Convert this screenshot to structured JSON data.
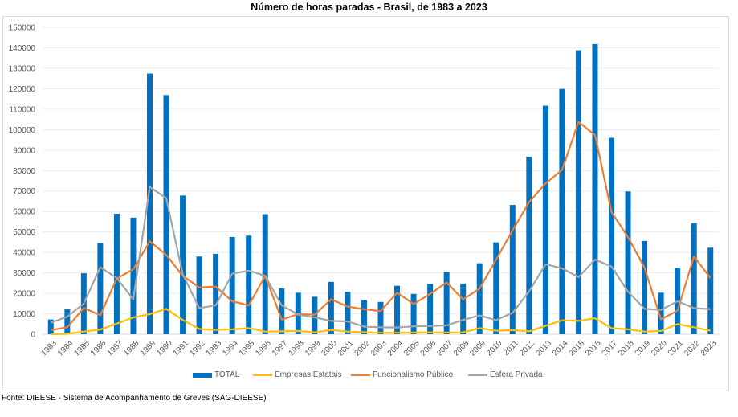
{
  "chart_data": {
    "type": "bar+line",
    "title": "Número de horas paradas - Brasil, de 1983 a 2023",
    "xlabel": "",
    "ylabel": "",
    "ylim": [
      0,
      150000
    ],
    "yticks": [
      "0",
      "10000",
      "20000",
      "30000",
      "40000",
      "50000",
      "60000",
      "70000",
      "80000",
      "90000",
      "100000",
      "110000",
      "120000",
      "130000",
      "140000",
      "150000"
    ],
    "ytick_values": [
      0,
      10000,
      20000,
      30000,
      40000,
      50000,
      60000,
      70000,
      80000,
      90000,
      100000,
      110000,
      120000,
      130000,
      140000,
      150000
    ],
    "grid": true,
    "legend_position": "bottom",
    "categories": [
      "1983",
      "1984",
      "1985",
      "1986",
      "1987",
      "1988",
      "1989",
      "1990",
      "1991",
      "1992",
      "1993",
      "1994",
      "1995",
      "1996",
      "1997",
      "1998",
      "1999",
      "2000",
      "2001",
      "2002",
      "2003",
      "2004",
      "2005",
      "2006",
      "2007",
      "2008",
      "2009",
      "2010",
      "2011",
      "2012",
      "2013",
      "2014",
      "2015",
      "2016",
      "2017",
      "2018",
      "2019",
      "2020",
      "2021",
      "2022",
      "2023"
    ],
    "series": [
      {
        "name": "TOTAL",
        "kind": "bar",
        "color": "#0070c0",
        "values": [
          7200,
          12200,
          29800,
          44500,
          58900,
          57000,
          127400,
          116900,
          67800,
          38000,
          39300,
          47500,
          48200,
          58700,
          22400,
          20300,
          18300,
          25600,
          20700,
          16600,
          15800,
          23700,
          19700,
          24600,
          30500,
          24800,
          34700,
          44900,
          63200,
          86800,
          111700,
          119900,
          138800,
          141800,
          96000,
          69800,
          45600,
          20300,
          32500,
          54300,
          42300
        ]
      },
      {
        "name": "Empresas Estatais",
        "kind": "line",
        "color": "#ffc000",
        "values": [
          0,
          200,
          1300,
          2300,
          5200,
          8200,
          9800,
          12400,
          7000,
          2600,
          2100,
          2400,
          3000,
          1300,
          1400,
          1600,
          900,
          2100,
          1300,
          1000,
          700,
          700,
          800,
          900,
          800,
          900,
          3000,
          1700,
          2000,
          1400,
          4100,
          6800,
          6500,
          7800,
          3000,
          2400,
          1300,
          1600,
          5000,
          3400,
          1700
        ]
      },
      {
        "name": "Funcionalismo Público",
        "kind": "line",
        "color": "#ed7d31",
        "values": [
          2000,
          3400,
          12800,
          9300,
          27200,
          31800,
          45400,
          38800,
          28500,
          22900,
          23300,
          16100,
          14100,
          28500,
          7200,
          9800,
          9600,
          17100,
          13500,
          12200,
          11300,
          20300,
          14800,
          19700,
          25300,
          17000,
          22300,
          36500,
          50800,
          64500,
          73700,
          80300,
          103800,
          97300,
          59700,
          47500,
          32500,
          7300,
          11500,
          38000,
          27500
        ]
      },
      {
        "name": "Esfera Privada",
        "kind": "line",
        "color": "#a5a5a5",
        "values": [
          5600,
          8600,
          15000,
          32700,
          27500,
          17000,
          72000,
          66500,
          29200,
          12800,
          14100,
          29600,
          31100,
          28600,
          14100,
          9600,
          8200,
          6500,
          6300,
          3700,
          3400,
          3300,
          3900,
          4000,
          4300,
          7000,
          9200,
          6900,
          10500,
          20900,
          34200,
          32200,
          27900,
          36500,
          33100,
          20800,
          12400,
          11900,
          16100,
          12800,
          12200
        ]
      }
    ]
  },
  "source_note": "Fonte: DIEESE - Sistema de Acompanhamento de Greves (SAG-DIEESE)"
}
